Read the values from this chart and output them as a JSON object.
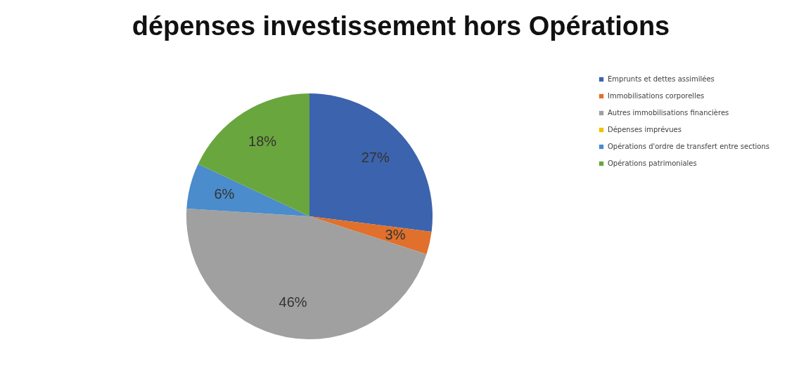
{
  "chart_data": {
    "type": "pie",
    "title": "dépenses investissement hors Opérations",
    "categories": [
      "Emprunts et dettes assimilées",
      "Immobilisations corporelles",
      "Autres immobilisations financières",
      "Dépenses imprévues",
      "Opérations d'ordre de transfert entre sections",
      "Opérations patrimoniales"
    ],
    "values": [
      27,
      3,
      46,
      0,
      6,
      18
    ],
    "value_labels": [
      "27%",
      "3%",
      "46%",
      null,
      "6%",
      "18%"
    ],
    "colors": [
      "#3c63ad",
      "#e0702c",
      "#a0a0a0",
      "#f5c000",
      "#4a8ccc",
      "#6aa63e"
    ],
    "legend": "right"
  }
}
